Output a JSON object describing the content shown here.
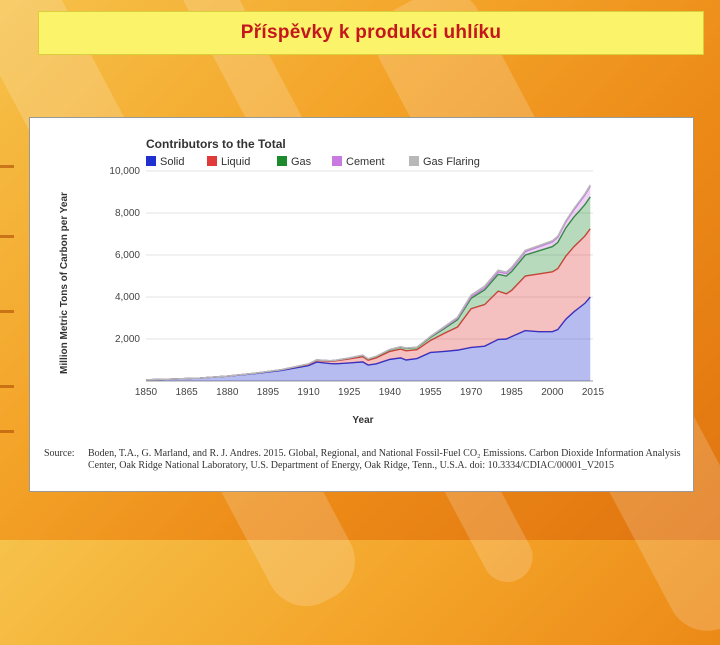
{
  "slide": {
    "title": "Příspěvky k produkci uhlíku",
    "colors": {
      "title_text": "#c4161c",
      "title_bg": "#fbf36a"
    }
  },
  "source": {
    "label": "Source:",
    "text": "Boden, T.A., G. Marland, and R. J. Andres. 2015. Global, Regional, and National Fossil-Fuel CO₂ Emissions. Carbon Dioxide Information Analysis Center, Oak Ridge National Laboratory, U.S. Department of Energy, Oak Ridge, Tenn., U.S.A. doi: 10.3334/CDIAC/00001_V2015"
  },
  "chart_data": {
    "type": "area",
    "stacked": true,
    "title": "Contributors to the Total",
    "xlabel": "Year",
    "ylabel": "Million Metric Tons of Carbon per Year",
    "xlim": [
      1850,
      2015
    ],
    "ylim": [
      0,
      10000
    ],
    "x_ticks": [
      1850,
      1865,
      1880,
      1895,
      1910,
      1925,
      1940,
      1955,
      1970,
      1985,
      2000,
      2015
    ],
    "y_ticks": [
      2000,
      4000,
      6000,
      8000,
      10000
    ],
    "y_tick_labels": [
      "2,000",
      "4,000",
      "6,000",
      "8,000",
      "10,000"
    ],
    "legend_position": "top-left",
    "grid": true,
    "x": [
      1850,
      1860,
      1870,
      1880,
      1890,
      1900,
      1910,
      1913,
      1918,
      1920,
      1925,
      1930,
      1932,
      1935,
      1940,
      1944,
      1946,
      1950,
      1955,
      1960,
      1965,
      1970,
      1975,
      1980,
      1983,
      1985,
      1990,
      1995,
      2000,
      2002,
      2005,
      2008,
      2010,
      2012,
      2014
    ],
    "series": [
      {
        "name": "Solid",
        "color": "#1f2fd0",
        "values": [
          54,
          91,
          139,
          228,
          350,
          505,
          735,
          900,
          830,
          820,
          860,
          910,
          760,
          820,
          1030,
          1100,
          1000,
          1070,
          1360,
          1410,
          1470,
          1600,
          1660,
          1980,
          2000,
          2120,
          2400,
          2350,
          2350,
          2450,
          2950,
          3300,
          3500,
          3700,
          4000
        ]
      },
      {
        "name": "Liquid",
        "color": "#e03a3a",
        "values": [
          0,
          0,
          2,
          5,
          15,
          27,
          60,
          80,
          110,
          140,
          190,
          250,
          230,
          280,
          380,
          420,
          440,
          420,
          570,
          850,
          1100,
          1840,
          1980,
          2300,
          2150,
          2200,
          2600,
          2750,
          2850,
          2900,
          3000,
          3100,
          3150,
          3200,
          3250
        ]
      },
      {
        "name": "Gas",
        "color": "#1e8a2e",
        "values": [
          0,
          0,
          0,
          0,
          2,
          5,
          15,
          20,
          22,
          24,
          40,
          60,
          55,
          65,
          80,
          100,
          110,
          100,
          150,
          230,
          350,
          500,
          700,
          800,
          850,
          900,
          1000,
          1100,
          1200,
          1250,
          1350,
          1420,
          1450,
          1500,
          1520
        ]
      },
      {
        "name": "Cement",
        "color": "#c77ae0",
        "values": [
          0,
          0,
          0,
          0,
          0,
          0,
          5,
          5,
          5,
          6,
          8,
          10,
          10,
          12,
          15,
          15,
          18,
          18,
          30,
          50,
          60,
          75,
          90,
          120,
          120,
          130,
          160,
          190,
          220,
          240,
          280,
          340,
          400,
          450,
          500
        ]
      },
      {
        "name": "Gas Flaring",
        "color": "#b8b8b8",
        "values": [
          0,
          0,
          0,
          0,
          0,
          0,
          0,
          0,
          0,
          0,
          0,
          0,
          0,
          0,
          0,
          0,
          0,
          0,
          20,
          40,
          60,
          80,
          90,
          80,
          70,
          70,
          60,
          60,
          60,
          60,
          60,
          60,
          65,
          65,
          70
        ]
      }
    ]
  }
}
